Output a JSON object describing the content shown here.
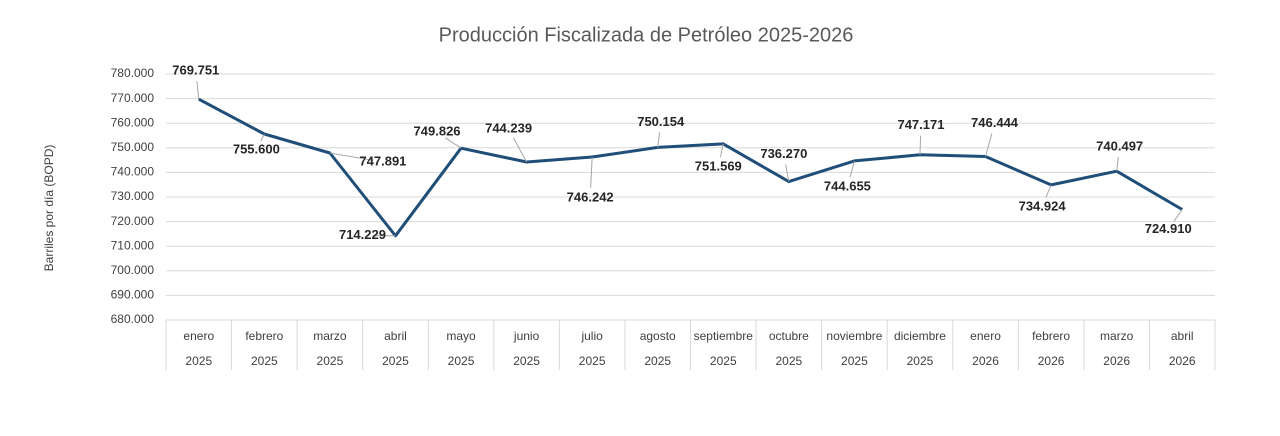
{
  "chart_data": {
    "type": "line",
    "title": "Producción Fiscalizada de Petróleo 2025-2026",
    "y_label": "Barriles por día (BOPD)",
    "categories": [
      "enero",
      "febrero",
      "marzo",
      "abril",
      "mayo",
      "junio",
      "julio",
      "agosto",
      "septiembre",
      "octubre",
      "noviembre",
      "diciembre",
      "enero",
      "febrero",
      "marzo",
      "abril"
    ],
    "years": [
      "2025",
      "2025",
      "2025",
      "2025",
      "2025",
      "2025",
      "2025",
      "2025",
      "2025",
      "2025",
      "2025",
      "2025",
      "2026",
      "2026",
      "2026",
      "2026"
    ],
    "values": [
      769751,
      755600,
      747891,
      714229,
      749826,
      744239,
      746242,
      750154,
      751569,
      736270,
      744655,
      747171,
      746444,
      734924,
      740497,
      724910
    ],
    "value_labels": [
      "769.751",
      "755.600",
      "747.891",
      "714.229",
      "749.826",
      "744.239",
      "746.242",
      "750.154",
      "751.569",
      "736.270",
      "744.655",
      "747.171",
      "746.444",
      "734.924",
      "740.497",
      "724.910"
    ],
    "color": "#1f4e79",
    "ylim": [
      680000,
      780000
    ],
    "yticks": [
      {
        "value": 680000,
        "label": "680.000"
      },
      {
        "value": 690000,
        "label": "690.000"
      },
      {
        "value": 700000,
        "label": "700.000"
      },
      {
        "value": 710000,
        "label": "710.000"
      },
      {
        "value": 720000,
        "label": "720.000"
      },
      {
        "value": 730000,
        "label": "730.000"
      },
      {
        "value": 740000,
        "label": "740.000"
      },
      {
        "value": 750000,
        "label": "750.000"
      },
      {
        "value": 760000,
        "label": "760.000"
      },
      {
        "value": 770000,
        "label": "770.000"
      },
      {
        "value": 780000,
        "label": "780.000"
      }
    ],
    "grid": true
  }
}
